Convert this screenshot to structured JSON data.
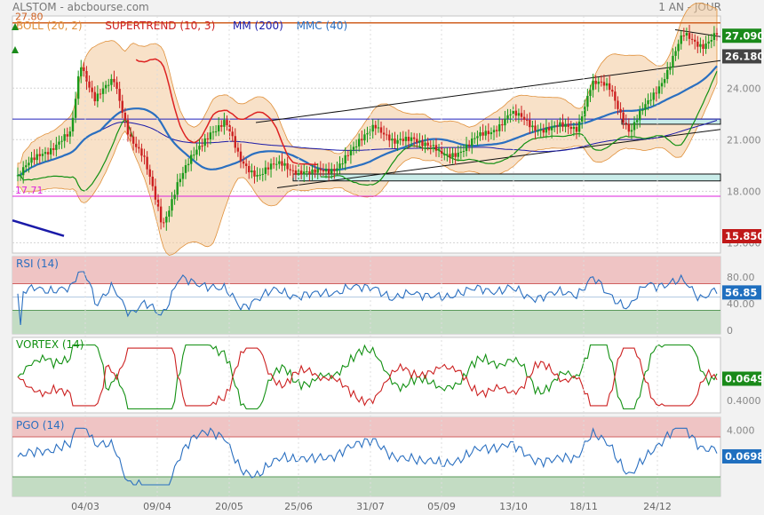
{
  "header": {
    "title": "ALSTOM - abcbourse.com",
    "period": "1 AN - JOUR"
  },
  "colors": {
    "boll": "#e0903a",
    "boll_fill": "#f3c89a",
    "supertrend_up": "#129012",
    "supertrend_down": "#dd2222",
    "mm200": "#1a1aa8",
    "mmc40": "#2a6fc0",
    "candle_up": "#1a9a1a",
    "candle_down": "#cc2020",
    "rsi": "#2a6fc0",
    "pgo": "#2a6fc0",
    "vortex_plus": "#129012",
    "vortex_minus": "#cc2020",
    "zone_high": "#efc4c4",
    "zone_low": "#c3dcc3",
    "grid": "#d2d2d2"
  },
  "legend": [
    {
      "label": "BOLL (20, 2)",
      "color": "#e0903a"
    },
    {
      "label": "SUPERTREND (10, 3)",
      "color": "#cc2020"
    },
    {
      "label": "MM (200)",
      "color": "#1a1aa8"
    },
    {
      "label": "MMC (40)",
      "color": "#2a6fc0"
    }
  ],
  "chart_data": {
    "type": "candlestick",
    "x_ticks": [
      "04/03",
      "09/04",
      "20/05",
      "25/06",
      "31/07",
      "05/09",
      "13/10",
      "18/11",
      "24/12"
    ],
    "price": {
      "ylim": [
        14.4,
        28.2
      ],
      "y_ticks": [
        "24.000",
        "21.000",
        "18.000",
        "15.000"
      ],
      "y_tick_values": [
        24,
        21,
        18,
        15
      ],
      "last_close": "27.090",
      "level_high": "27.80",
      "level_low": "17.71",
      "mm200_last": "26.180",
      "mm200_start": "15.850",
      "horizontal_levels": [
        27.8,
        22.2,
        17.71
      ],
      "support_zone": [
        18.6,
        19.0
      ],
      "resistance_zone": [
        21.9,
        22.2
      ]
    },
    "rsi": {
      "title": "RSI (14)",
      "last": "56.85",
      "ylim": [
        0,
        100
      ],
      "y_ticks": [
        "80.00",
        "40.00",
        "0"
      ],
      "y_tick_values": [
        80,
        40,
        0
      ],
      "upper": 70,
      "lower": 30
    },
    "vortex": {
      "title": "VORTEX (14)",
      "last": "0.0649",
      "y_ticks": [
        "0.4000"
      ]
    },
    "pgo": {
      "title": "PGO (14)",
      "last": "0.0698",
      "y_ticks": [
        "4.000"
      ],
      "upper": 3,
      "lower": -3
    }
  }
}
